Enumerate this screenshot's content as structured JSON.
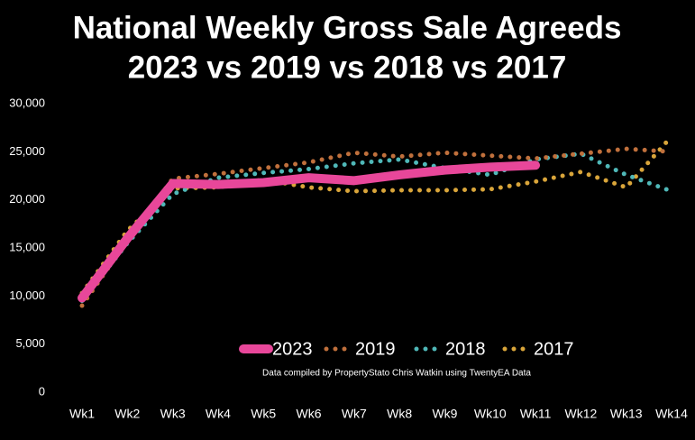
{
  "chart_data": {
    "type": "line",
    "title": [
      "National Weekly Gross Sale Agreeds",
      "2023 vs 2019 vs 2018 vs 2017"
    ],
    "annotation": "Data compiled by PropertyStato Chris Watkin using TwentyEA Data",
    "categories": [
      "Wk1",
      "Wk2",
      "Wk3",
      "Wk4",
      "Wk5",
      "Wk6",
      "Wk7",
      "Wk8",
      "Wk9",
      "Wk10",
      "Wk11",
      "Wk12",
      "Wk13",
      "Wk14"
    ],
    "series": [
      {
        "name": "2023",
        "color": "#e8479a",
        "style": "solid",
        "values": [
          9800,
          16000,
          21700,
          21600,
          21800,
          22300,
          22000,
          22600,
          23100,
          23400,
          23600,
          null,
          null,
          null
        ]
      },
      {
        "name": "2019",
        "color": "#c0703c",
        "style": "dotted",
        "values": [
          9000,
          15800,
          22200,
          22700,
          23300,
          23900,
          24900,
          24500,
          24900,
          24600,
          24300,
          24800,
          25300,
          25000
        ]
      },
      {
        "name": "2018",
        "color": "#4fb8b8",
        "style": "dotted",
        "values": [
          9500,
          15500,
          20600,
          22300,
          22800,
          23200,
          23800,
          24200,
          23300,
          22600,
          24200,
          24800,
          22600,
          20900
        ]
      },
      {
        "name": "2017",
        "color": "#d9a53a",
        "style": "dotted",
        "values": [
          10300,
          16800,
          21200,
          21300,
          22100,
          21300,
          20900,
          21000,
          21000,
          21100,
          21900,
          22900,
          21300,
          26600
        ]
      }
    ],
    "ylim": [
      0,
      30000
    ],
    "yticks": [
      0,
      {
        "value": 5000,
        "label": "5,000"
      },
      {
        "value": 10000,
        "label": "10,000"
      },
      {
        "value": 15000,
        "label": "15,000"
      },
      {
        "value": 20000,
        "label": "20,000"
      },
      {
        "value": 25000,
        "label": "25,000"
      },
      {
        "value": 30000,
        "label": "30,000"
      }
    ],
    "grid": false
  }
}
